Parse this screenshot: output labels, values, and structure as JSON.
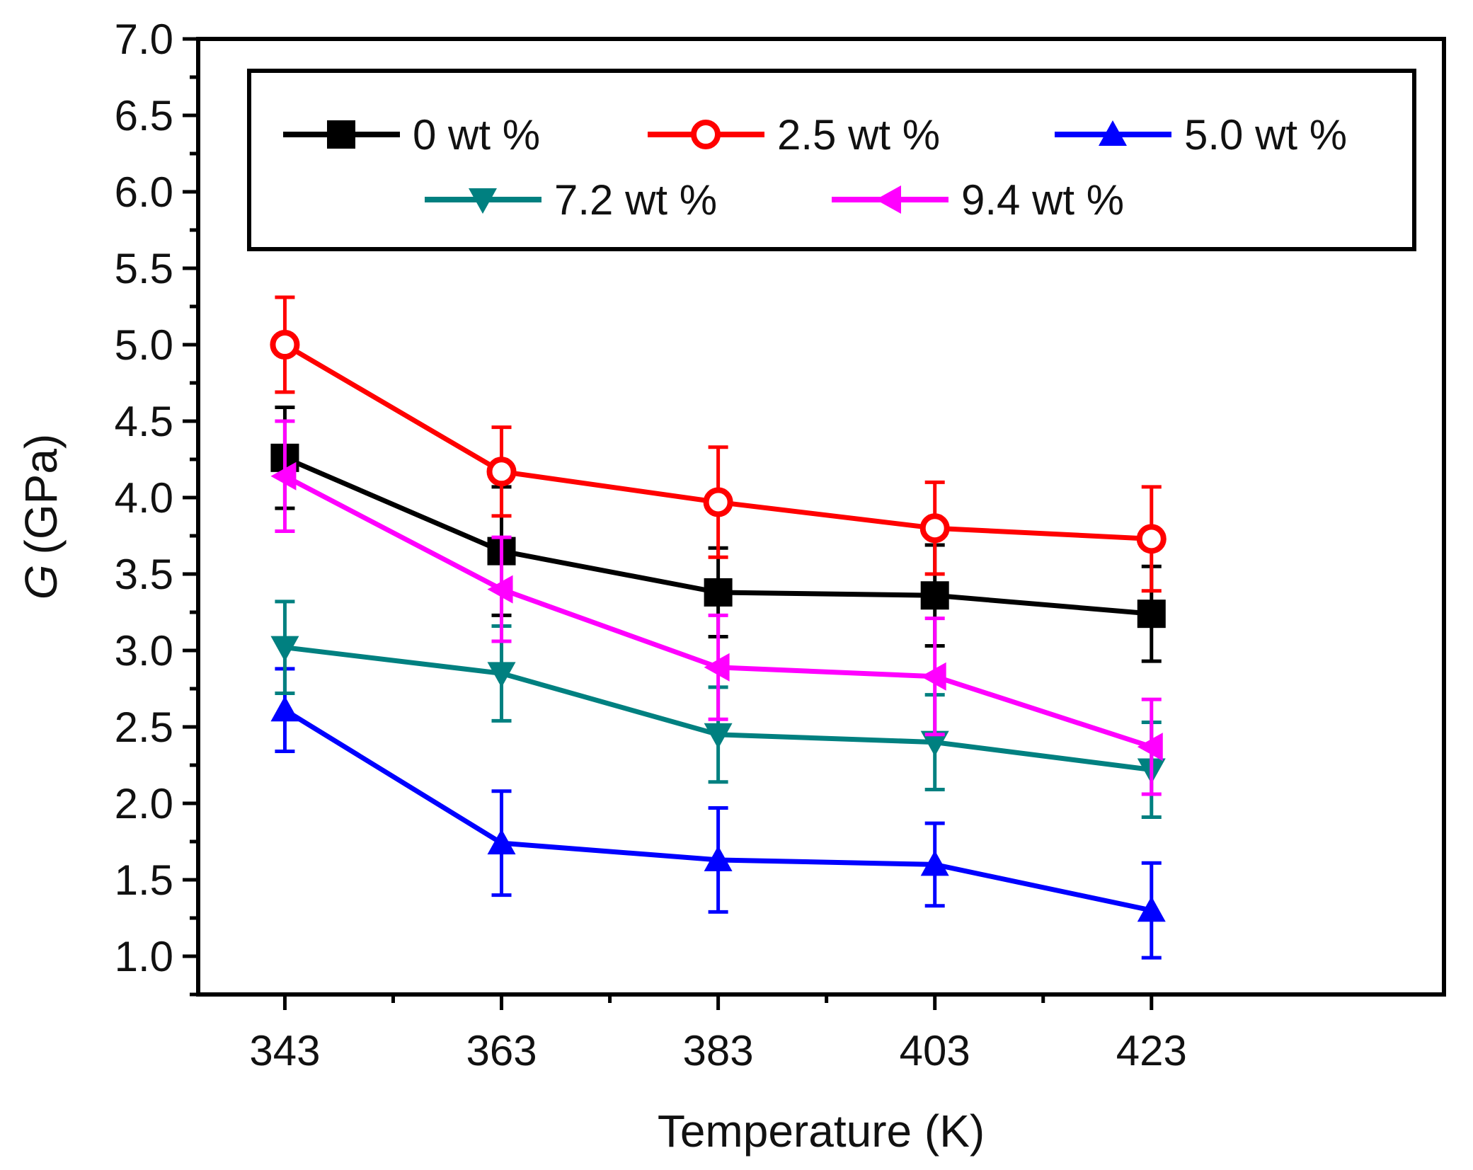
{
  "chart_data": {
    "type": "line",
    "title": "",
    "xlabel": "Temperature (K)",
    "ylabel_symbol": "G",
    "ylabel_unit": "(GPa)",
    "x": [
      343,
      363,
      383,
      403,
      423
    ],
    "x_tick_labels": [
      "343",
      "363",
      "383",
      "403",
      "423"
    ],
    "xlim": [
      335,
      450
    ],
    "ylim": [
      0.75,
      7.0
    ],
    "y_ticks": [
      1.0,
      1.5,
      2.0,
      2.5,
      3.0,
      3.5,
      4.0,
      4.5,
      5.0,
      5.5,
      6.0,
      6.5,
      7.0
    ],
    "y_tick_labels": [
      "1.0",
      "1.5",
      "2.0",
      "2.5",
      "3.0",
      "3.5",
      "4.0",
      "4.5",
      "5.0",
      "5.5",
      "6.0",
      "6.5",
      "7.0"
    ],
    "legend_position": "top",
    "grid": false,
    "series": [
      {
        "name": "0 wt %",
        "color": "#000000",
        "marker": "square",
        "values": [
          4.26,
          3.65,
          3.38,
          3.36,
          3.24
        ],
        "errors": [
          0.33,
          0.42,
          0.29,
          0.33,
          0.31
        ]
      },
      {
        "name": "2.5 wt %",
        "color": "#ff0000",
        "marker": "circle",
        "values": [
          5.0,
          4.17,
          3.97,
          3.8,
          3.73
        ],
        "errors": [
          0.31,
          0.29,
          0.36,
          0.3,
          0.34
        ]
      },
      {
        "name": "5.0 wt %",
        "color": "#0000ff",
        "marker": "triangle-up",
        "values": [
          2.61,
          1.74,
          1.63,
          1.6,
          1.3
        ],
        "errors": [
          0.27,
          0.34,
          0.34,
          0.27,
          0.31
        ]
      },
      {
        "name": "7.2 wt %",
        "color": "#008080",
        "marker": "triangle-down",
        "values": [
          3.02,
          2.85,
          2.45,
          2.4,
          2.22
        ],
        "errors": [
          0.3,
          0.31,
          0.31,
          0.31,
          0.31
        ]
      },
      {
        "name": "9.4 wt %",
        "color": "#ff00ff",
        "marker": "triangle-left",
        "values": [
          4.14,
          3.4,
          2.89,
          2.83,
          2.37
        ],
        "errors": [
          0.36,
          0.34,
          0.34,
          0.38,
          0.31
        ]
      }
    ]
  }
}
